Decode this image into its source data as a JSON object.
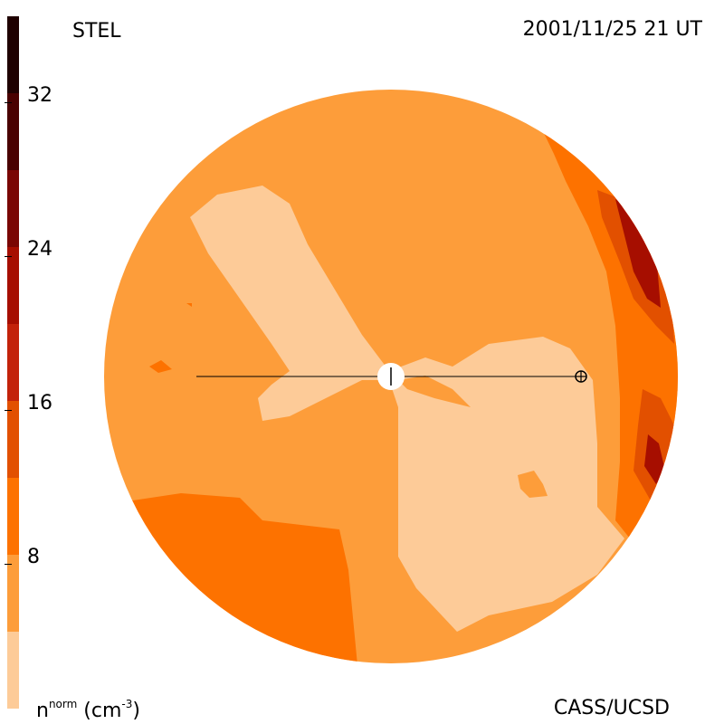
{
  "header": {
    "instrument": "STEL",
    "timestamp": "2001/11/25 21 UT"
  },
  "footer": {
    "quantity_label_base": "n",
    "quantity_label_sup": "norm",
    "quantity_label_unit_open": " (cm",
    "quantity_label_unit_exp": "-3",
    "quantity_label_unit_close": ")",
    "credit": "CASS/UCSD"
  },
  "colorbar": {
    "range": [
      0,
      36
    ],
    "tick_labels": [
      "32",
      "24",
      "16",
      "8"
    ],
    "tick_values": [
      32,
      24,
      16,
      8
    ],
    "levels": [
      {
        "from": 0,
        "to": 4,
        "color": "#fdcb98"
      },
      {
        "from": 4,
        "to": 8,
        "color": "#fd9d3a"
      },
      {
        "from": 8,
        "to": 12,
        "color": "#fd7200"
      },
      {
        "from": 12,
        "to": 16,
        "color": "#e25000"
      },
      {
        "from": 16,
        "to": 20,
        "color": "#c3220a"
      },
      {
        "from": 20,
        "to": 24,
        "color": "#a60e00"
      },
      {
        "from": 24,
        "to": 28,
        "color": "#7a0603"
      },
      {
        "from": 28,
        "to": 32,
        "color": "#4a0000"
      },
      {
        "from": 32,
        "to": 36,
        "color": "#1f0000"
      }
    ]
  },
  "map": {
    "background_color": "#fd9d3a",
    "sun_marker": "sun-disk",
    "earth_marker": "earth-symbol"
  }
}
